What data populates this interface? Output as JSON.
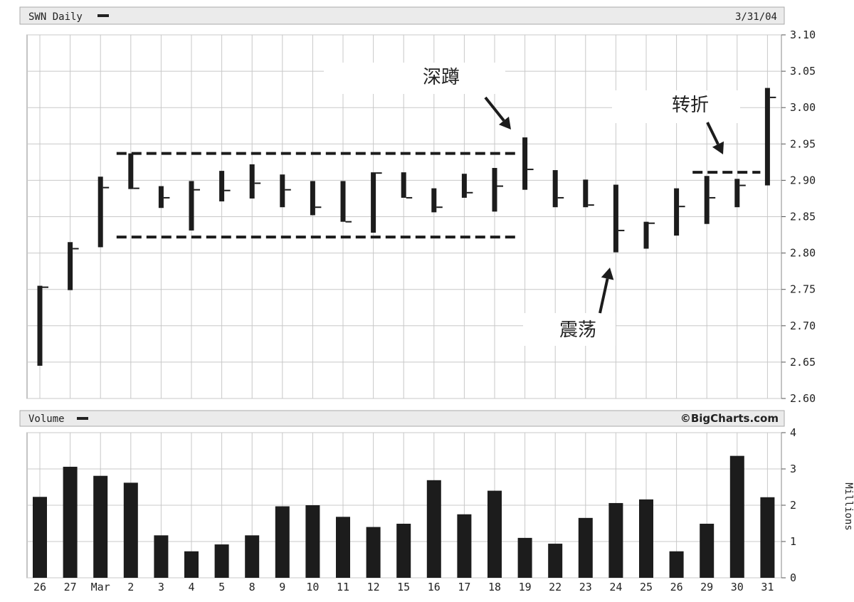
{
  "chart_data": [
    {
      "type": "ohlc",
      "title": "SWN Daily",
      "date": "3/31/04",
      "categories": [
        "26",
        "27",
        "Mar",
        "2",
        "3",
        "4",
        "5",
        "8",
        "9",
        "10",
        "11",
        "12",
        "15",
        "16",
        "17",
        "18",
        "19",
        "22",
        "23",
        "24",
        "25",
        "26",
        "29",
        "30",
        "31"
      ],
      "high": [
        2.755,
        2.815,
        2.905,
        2.937,
        2.892,
        2.899,
        2.913,
        2.922,
        2.908,
        2.899,
        2.899,
        2.911,
        2.911,
        2.889,
        2.909,
        2.917,
        2.959,
        2.914,
        2.901,
        2.894,
        2.843,
        2.889,
        2.906,
        2.902,
        3.027
      ],
      "low": [
        2.645,
        2.749,
        2.808,
        2.888,
        2.862,
        2.831,
        2.871,
        2.875,
        2.863,
        2.852,
        2.843,
        2.828,
        2.876,
        2.856,
        2.876,
        2.857,
        2.887,
        2.863,
        2.863,
        2.801,
        2.806,
        2.824,
        2.84,
        2.863,
        2.893
      ],
      "close": [
        2.753,
        2.806,
        2.89,
        2.889,
        2.876,
        2.887,
        2.886,
        2.896,
        2.887,
        2.863,
        2.843,
        2.91,
        2.876,
        2.863,
        2.883,
        2.892,
        2.915,
        2.876,
        2.866,
        2.831,
        2.841,
        2.864,
        2.876,
        2.893,
        3.014
      ],
      "ylim": [
        2.6,
        3.1
      ],
      "yticks": [
        "2.60",
        "2.65",
        "2.70",
        "2.75",
        "2.80",
        "2.85",
        "2.90",
        "2.95",
        "3.00",
        "3.05",
        "3.10"
      ],
      "grid": true,
      "annotations": [
        {
          "text": "深蹲",
          "target_index": 16,
          "target_value": 2.96
        },
        {
          "text": "转折",
          "target_index": 22,
          "target_value": 2.93
        },
        {
          "text": "震荡",
          "target_index": 19,
          "target_value": 2.78
        }
      ],
      "reference_lines": [
        {
          "value": 2.937,
          "from_index": 3,
          "to_index": 16,
          "style": "dashed"
        },
        {
          "value": 2.822,
          "from_index": 3,
          "to_index": 16,
          "style": "dashed"
        },
        {
          "value": 2.911,
          "from_index": 22,
          "to_index": 24,
          "style": "dashed"
        }
      ]
    },
    {
      "type": "bar",
      "title": "Volume",
      "credit": "©BigCharts.com",
      "categories": [
        "26",
        "27",
        "Mar",
        "2",
        "3",
        "4",
        "5",
        "8",
        "9",
        "10",
        "11",
        "12",
        "15",
        "16",
        "17",
        "18",
        "19",
        "22",
        "23",
        "24",
        "25",
        "26",
        "29",
        "30",
        "31"
      ],
      "values": [
        2.23,
        3.06,
        2.81,
        2.62,
        1.17,
        0.73,
        0.92,
        1.17,
        1.97,
        2.0,
        1.68,
        1.4,
        1.49,
        2.69,
        1.75,
        2.4,
        1.1,
        0.94,
        1.65,
        2.06,
        2.16,
        0.73,
        1.49,
        3.36,
        2.22
      ],
      "ylabel": "Millions",
      "ylim": [
        0,
        4
      ],
      "yticks": [
        "0",
        "1",
        "2",
        "3",
        "4"
      ],
      "grid": true
    }
  ],
  "colors": {
    "bar": "#1c1c1c",
    "grid": "#c8c8c8",
    "text": "#222222",
    "frame": "#888888"
  }
}
